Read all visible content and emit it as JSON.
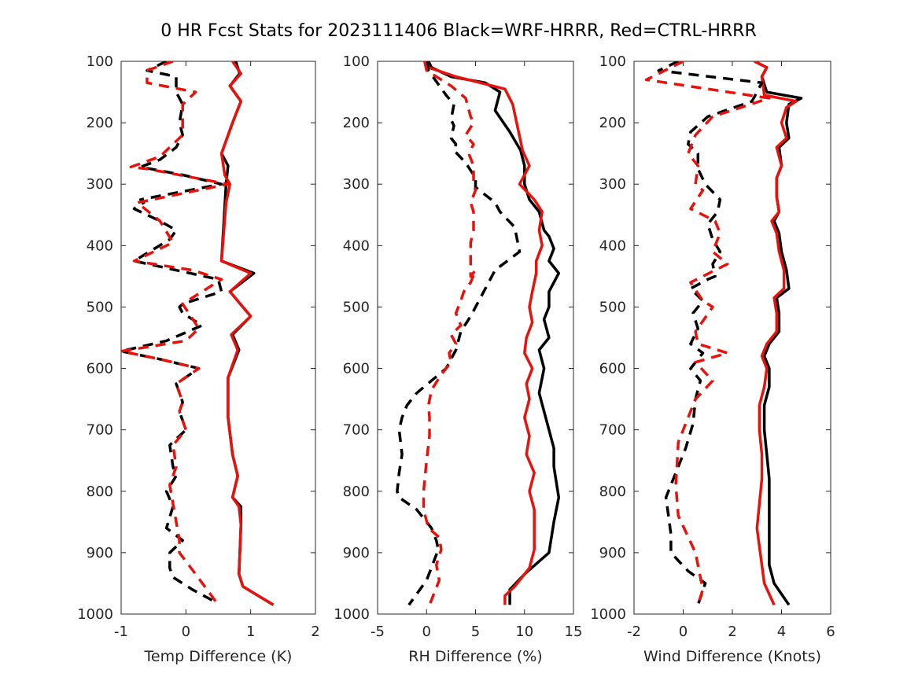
{
  "title": "0 HR Fcst Stats for 2023111406 Black=WRF-HRRR, Red=CTRL-HRRR",
  "colors": {
    "wrf": "#000000",
    "ctrl": "#e8120c"
  },
  "chart_data": [
    {
      "type": "line",
      "xlabel": "Temp Difference (K)",
      "ylabel": "",
      "xlim": [
        -1,
        2
      ],
      "ylim": [
        1000,
        100
      ],
      "y_reversed": true,
      "xticks": [
        "-1",
        "0",
        "1",
        "2"
      ],
      "yticks": [
        "100",
        "200",
        "300",
        "400",
        "500",
        "600",
        "700",
        "800",
        "900",
        "1000"
      ],
      "series": [
        {
          "legend": "WRF-HRRR",
          "style": "solid",
          "color": "#000000",
          "x": [
            0.77,
            0.83,
            0.68,
            0.85,
            0.72,
            0.55,
            0.65,
            0.62,
            0.55,
            1.05,
            0.68,
            1.0,
            0.72,
            0.82,
            0.65,
            0.65,
            0.72,
            0.8,
            0.72,
            0.85,
            0.85,
            0.82,
            0.88,
            1.35
          ],
          "y": [
            100,
            120,
            140,
            165,
            200,
            250,
            270,
            300,
            425,
            445,
            475,
            515,
            545,
            570,
            615,
            680,
            740,
            775,
            810,
            825,
            855,
            935,
            955,
            985
          ]
        },
        {
          "legend": "CTRL-HRRR",
          "style": "solid",
          "color": "#e8120c",
          "x": [
            0.72,
            0.85,
            0.68,
            0.85,
            0.72,
            0.55,
            0.6,
            0.68,
            0.62,
            0.55,
            1.0,
            0.68,
            1.0,
            0.7,
            0.8,
            0.65,
            0.65,
            0.72,
            0.8,
            0.72,
            0.82,
            0.85,
            0.82,
            0.88,
            1.35
          ],
          "y": [
            100,
            120,
            140,
            165,
            200,
            250,
            285,
            300,
            330,
            425,
            445,
            475,
            515,
            545,
            570,
            615,
            680,
            740,
            775,
            810,
            825,
            855,
            935,
            955,
            985
          ]
        },
        {
          "legend": "WRF-HRRR",
          "style": "dashed",
          "color": "#000000",
          "x": [
            -0.3,
            -0.6,
            -0.15,
            -0.15,
            -0.05,
            -0.1,
            -0.05,
            -0.15,
            -0.4,
            -0.7,
            -0.05,
            0.55,
            -0.7,
            -0.65,
            -0.8,
            -0.4,
            -0.15,
            -0.25,
            -0.8,
            0.5,
            0.55,
            -0.05,
            -0.1,
            -0.05,
            0.25,
            -0.3,
            -1.0,
            -0.4,
            0.2,
            -0.15,
            -0.05,
            -0.1,
            0.0,
            -0.25,
            -0.2,
            -0.15,
            -0.3,
            -0.2,
            -0.3,
            -0.05,
            -0.25,
            -0.25,
            -0.2,
            0.1,
            0.45
          ],
          "y": [
            100,
            115,
            125,
            150,
            170,
            200,
            220,
            240,
            260,
            272,
            285,
            300,
            325,
            330,
            340,
            360,
            375,
            390,
            425,
            455,
            475,
            495,
            500,
            510,
            530,
            555,
            572,
            585,
            600,
            625,
            655,
            670,
            700,
            725,
            760,
            775,
            800,
            825,
            860,
            880,
            900,
            925,
            940,
            960,
            980
          ]
        },
        {
          "legend": "CTRL-HRRR",
          "style": "dashed",
          "color": "#e8120c",
          "x": [
            -0.2,
            -0.6,
            -0.6,
            0.15,
            -0.05,
            -0.05,
            -0.4,
            -0.85,
            -0.6,
            0.65,
            -0.75,
            -0.4,
            -0.2,
            -0.8,
            0.1,
            0.55,
            -0.05,
            0.2,
            0.0,
            -1.0,
            -0.4,
            0.2,
            -0.15,
            -0.05,
            -0.1,
            0.0,
            -0.2,
            -0.15,
            -0.25,
            -0.2,
            -0.15,
            -0.1,
            -0.1,
            0.15,
            0.5
          ],
          "y": [
            100,
            115,
            135,
            150,
            170,
            220,
            255,
            272,
            275,
            300,
            330,
            360,
            395,
            425,
            440,
            455,
            495,
            535,
            555,
            572,
            585,
            600,
            625,
            655,
            670,
            700,
            725,
            760,
            790,
            820,
            850,
            880,
            900,
            935,
            985
          ]
        }
      ]
    },
    {
      "type": "line",
      "xlabel": "RH Difference (%)",
      "ylabel": "",
      "xlim": [
        -5,
        15
      ],
      "ylim": [
        1000,
        100
      ],
      "y_reversed": true,
      "xticks": [
        "-5",
        "0",
        "5",
        "10",
        "15"
      ],
      "yticks": [
        "100",
        "200",
        "300",
        "400",
        "500",
        "600",
        "700",
        "800",
        "900",
        "1000"
      ],
      "series": [
        {
          "legend": "WRF-HRRR",
          "style": "solid",
          "color": "#000000",
          "x": [
            0.2,
            0.5,
            2.5,
            6.0,
            7.5,
            7.0,
            8.5,
            9.6,
            10.0,
            10.0,
            10.5,
            11.5,
            12.0,
            12.5,
            13.0,
            12.5,
            13.5,
            12.5,
            12.5,
            12.0,
            12.5,
            11.5,
            12.0,
            11.5,
            12.0,
            12.5,
            13.0,
            13.0,
            13.5,
            13.0,
            12.5,
            10.0,
            8.5,
            8.5
          ],
          "y": [
            100,
            110,
            125,
            135,
            150,
            180,
            215,
            245,
            270,
            300,
            325,
            345,
            375,
            385,
            405,
            425,
            445,
            475,
            500,
            520,
            550,
            570,
            600,
            640,
            670,
            700,
            730,
            760,
            810,
            850,
            900,
            935,
            960,
            985
          ]
        },
        {
          "legend": "CTRL-HRRR",
          "style": "solid",
          "color": "#e8120c",
          "x": [
            0.0,
            0.2,
            3.0,
            5.5,
            8.0,
            8.8,
            9.2,
            9.8,
            10.5,
            9.5,
            11.0,
            11.8,
            11.5,
            11.8,
            11.2,
            11.2,
            10.8,
            10.5,
            10.8,
            10.2,
            10.0,
            10.8,
            10.2,
            10.5,
            10.0,
            10.5,
            10.2,
            11.0,
            10.5,
            11.0,
            11.0,
            11.0,
            10.5,
            9.0,
            8.0,
            8.0
          ],
          "y": [
            100,
            110,
            125,
            135,
            145,
            170,
            200,
            245,
            270,
            300,
            325,
            345,
            375,
            400,
            425,
            445,
            475,
            500,
            525,
            550,
            575,
            600,
            625,
            650,
            680,
            710,
            740,
            770,
            800,
            830,
            860,
            895,
            925,
            955,
            970,
            985
          ]
        },
        {
          "legend": "WRF-HRRR",
          "style": "dashed",
          "color": "#000000",
          "x": [
            0.0,
            0.2,
            2.0,
            2.8,
            2.5,
            2.8,
            2.5,
            3.0,
            2.8,
            4.0,
            5.0,
            5.0,
            7.0,
            7.5,
            9.0,
            9.5,
            7.0,
            6.0,
            4.5,
            3.5,
            3.0,
            2.0,
            0.5,
            -1.0,
            -2.0,
            -2.5,
            -2.8,
            -2.5,
            -2.8,
            -3.0,
            -2.8,
            -1.0,
            0.5,
            1.0,
            1.2,
            0.0,
            -1.8
          ],
          "y": [
            100,
            115,
            155,
            170,
            195,
            205,
            225,
            235,
            245,
            265,
            290,
            305,
            330,
            345,
            370,
            410,
            440,
            470,
            515,
            540,
            570,
            600,
            620,
            640,
            660,
            680,
            700,
            740,
            770,
            800,
            810,
            830,
            860,
            880,
            895,
            945,
            985
          ]
        },
        {
          "legend": "CTRL-HRRR",
          "style": "dashed",
          "color": "#e8120c",
          "x": [
            -0.2,
            0.0,
            2.5,
            4.0,
            4.5,
            4.8,
            4.0,
            4.8,
            4.3,
            4.8,
            4.8,
            5.0,
            4.5,
            4.8,
            4.8,
            4.5,
            4.5,
            4.5,
            4.5,
            5.0,
            4.5,
            3.8,
            3.5,
            3.0,
            3.5,
            2.5,
            3.0,
            2.3,
            2.5,
            1.5,
            0.5,
            0.2,
            0.3,
            0.3,
            0.0,
            -0.3,
            -0.3,
            0.2,
            1.3,
            1.5,
            1.0,
            1.3,
            0.3
          ],
          "y": [
            100,
            115,
            140,
            160,
            190,
            200,
            220,
            235,
            250,
            270,
            295,
            310,
            330,
            345,
            375,
            395,
            410,
            430,
            450,
            440,
            460,
            475,
            490,
            510,
            530,
            545,
            560,
            575,
            590,
            610,
            635,
            660,
            680,
            710,
            750,
            800,
            830,
            860,
            875,
            895,
            920,
            945,
            985
          ]
        }
      ]
    },
    {
      "type": "line",
      "xlabel": "Wind Difference (Knots)",
      "ylabel": "",
      "xlim": [
        -2,
        6
      ],
      "ylim": [
        1000,
        100
      ],
      "y_reversed": true,
      "xticks": [
        "-2",
        "0",
        "2",
        "4",
        "6"
      ],
      "yticks": [
        "100",
        "200",
        "300",
        "400",
        "500",
        "600",
        "700",
        "800",
        "900",
        "1000"
      ],
      "series": [
        {
          "legend": "WRF-HRRR",
          "style": "solid",
          "color": "#000000",
          "x": [
            2.9,
            3.4,
            3.2,
            3.4,
            4.8,
            4.3,
            4.2,
            4.3,
            3.9,
            4.0,
            3.8,
            3.8,
            3.9,
            3.7,
            3.9,
            4.0,
            4.2,
            4.3,
            3.8,
            3.9,
            3.9,
            3.5,
            3.3,
            3.5,
            3.5,
            3.3,
            3.3,
            3.4,
            3.5,
            3.5,
            3.5,
            3.5,
            3.5,
            3.7,
            4.3
          ],
          "y": [
            100,
            110,
            125,
            150,
            160,
            170,
            200,
            225,
            240,
            270,
            290,
            320,
            345,
            360,
            380,
            410,
            440,
            470,
            485,
            510,
            540,
            560,
            580,
            600,
            630,
            660,
            700,
            740,
            780,
            830,
            880,
            900,
            920,
            950,
            985
          ]
        },
        {
          "legend": "CTRL-HRRR",
          "style": "solid",
          "color": "#e8120c",
          "x": [
            2.9,
            3.4,
            3.2,
            3.3,
            4.6,
            4.2,
            4.0,
            4.2,
            3.8,
            4.0,
            3.8,
            3.8,
            3.9,
            3.6,
            3.8,
            3.9,
            4.1,
            4.1,
            3.7,
            3.8,
            3.8,
            3.4,
            3.2,
            3.4,
            3.3,
            3.1,
            3.1,
            3.2,
            3.2,
            3.1,
            3.0,
            3.1,
            3.2,
            3.3,
            3.7
          ],
          "y": [
            100,
            110,
            125,
            155,
            165,
            175,
            200,
            225,
            240,
            270,
            290,
            320,
            345,
            360,
            380,
            410,
            440,
            470,
            485,
            510,
            540,
            560,
            580,
            600,
            630,
            660,
            700,
            740,
            780,
            820,
            860,
            890,
            920,
            950,
            985
          ]
        },
        {
          "legend": "WRF-HRRR",
          "style": "dashed",
          "color": "#000000",
          "x": [
            -0.2,
            -1.0,
            3.2,
            2.8,
            1.0,
            0.3,
            0.2,
            0.6,
            0.6,
            0.9,
            1.5,
            1.4,
            1.0,
            1.2,
            1.5,
            1.2,
            1.3,
            1.0,
            0.3,
            0.8,
            0.4,
            0.6,
            0.3,
            0.8,
            0.3,
            0.7,
            0.5,
            0.4,
            0.1,
            -0.3,
            -0.7,
            -0.6,
            -0.5,
            -0.5,
            0.2,
            0.9,
            0.6
          ],
          "y": [
            100,
            115,
            135,
            165,
            190,
            215,
            235,
            250,
            275,
            300,
            325,
            345,
            365,
            390,
            410,
            430,
            450,
            455,
            470,
            490,
            510,
            535,
            560,
            575,
            600,
            620,
            650,
            690,
            730,
            770,
            810,
            840,
            870,
            900,
            930,
            950,
            985
          ]
        },
        {
          "legend": "CTRL-HRRR",
          "style": "dashed",
          "color": "#e8120c",
          "x": [
            0.0,
            -1.5,
            3.5,
            1.2,
            0.5,
            0.2,
            0.6,
            0.5,
            0.8,
            0.3,
            1.3,
            1.5,
            1.2,
            1.8,
            0.8,
            0.3,
            0.8,
            1.2,
            0.5,
            0.6,
            1.8,
            0.5,
            1.2,
            0.5,
            -0.2,
            -0.3,
            -0.2,
            0.5,
            0.8,
            0.6
          ],
          "y": [
            100,
            130,
            160,
            190,
            220,
            250,
            270,
            300,
            310,
            340,
            360,
            380,
            410,
            430,
            450,
            460,
            490,
            500,
            540,
            560,
            575,
            590,
            620,
            650,
            720,
            790,
            840,
            900,
            960,
            985
          ]
        }
      ]
    }
  ]
}
